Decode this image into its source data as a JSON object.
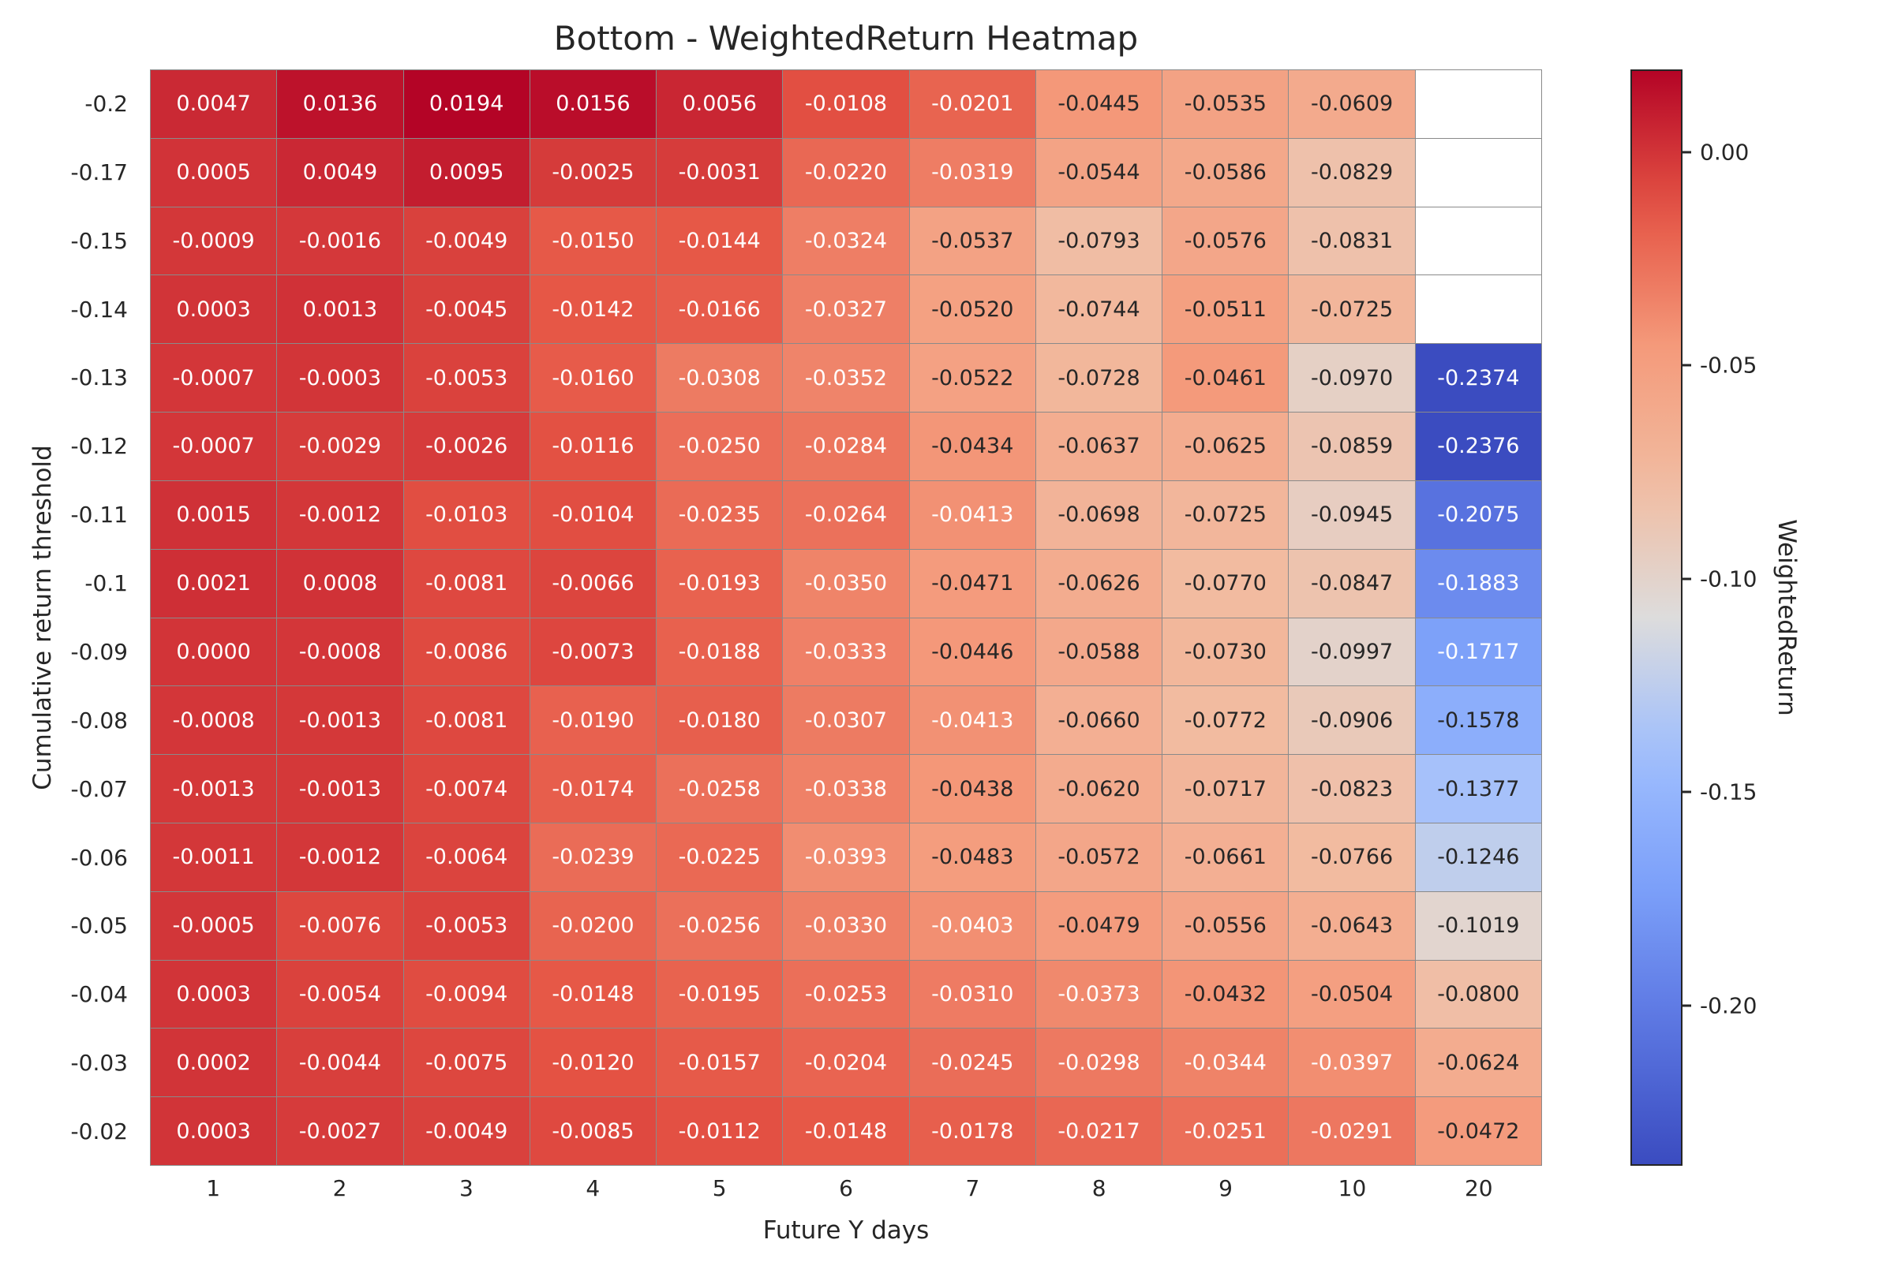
{
  "title": "Bottom - WeightedReturn Heatmap",
  "xlabel": "Future Y days",
  "ylabel": "Cumulative return threshold",
  "colorbar": {
    "label": "WeightedReturn",
    "ticks": [
      {
        "label": "0.00",
        "value": 0.0
      },
      {
        "label": "-0.05",
        "value": -0.05
      },
      {
        "label": "-0.10",
        "value": -0.1
      },
      {
        "label": "-0.15",
        "value": -0.15
      },
      {
        "label": "-0.20",
        "value": -0.2
      }
    ]
  },
  "colors": {
    "background": "#ffffff",
    "grid_line": "#8a8a8a",
    "text_dark": "#262626",
    "text_light": "#ffffff",
    "colormap_low": "#3b4cc0",
    "colormap_mid": "#dddcdc",
    "colormap_high": "#b40426"
  },
  "chart_data": {
    "type": "heatmap",
    "colormap": "coolwarm",
    "annot_decimals": 4,
    "vmin": -0.2376,
    "vmax": 0.0194,
    "x_categories": [
      "1",
      "2",
      "3",
      "4",
      "5",
      "6",
      "7",
      "8",
      "9",
      "10",
      "20"
    ],
    "y_categories": [
      "-0.2",
      "-0.17",
      "-0.15",
      "-0.14",
      "-0.13",
      "-0.12",
      "-0.11",
      "-0.1",
      "-0.09",
      "-0.08",
      "-0.07",
      "-0.06",
      "-0.05",
      "-0.04",
      "-0.03",
      "-0.02"
    ],
    "values": [
      [
        0.0047,
        0.0136,
        0.0194,
        0.0156,
        0.0056,
        -0.0108,
        -0.0201,
        -0.0445,
        -0.0535,
        -0.0609,
        null
      ],
      [
        0.0005,
        0.0049,
        0.0095,
        -0.0025,
        -0.0031,
        -0.022,
        -0.0319,
        -0.0544,
        -0.0586,
        -0.0829,
        null
      ],
      [
        -0.0009,
        -0.0016,
        -0.0049,
        -0.015,
        -0.0144,
        -0.0324,
        -0.0537,
        -0.0793,
        -0.0576,
        -0.0831,
        null
      ],
      [
        0.0003,
        0.0013,
        -0.0045,
        -0.0142,
        -0.0166,
        -0.0327,
        -0.052,
        -0.0744,
        -0.0511,
        -0.0725,
        null
      ],
      [
        -0.0007,
        -0.0003,
        -0.0053,
        -0.016,
        -0.0308,
        -0.0352,
        -0.0522,
        -0.0728,
        -0.0461,
        -0.097,
        -0.2374
      ],
      [
        -0.0007,
        -0.0029,
        -0.0026,
        -0.0116,
        -0.025,
        -0.0284,
        -0.0434,
        -0.0637,
        -0.0625,
        -0.0859,
        -0.2376
      ],
      [
        0.0015,
        -0.0012,
        -0.0103,
        -0.0104,
        -0.0235,
        -0.0264,
        -0.0413,
        -0.0698,
        -0.0725,
        -0.0945,
        -0.2075
      ],
      [
        0.0021,
        0.0008,
        -0.0081,
        -0.0066,
        -0.0193,
        -0.035,
        -0.0471,
        -0.0626,
        -0.077,
        -0.0847,
        -0.1883
      ],
      [
        0.0,
        -0.0008,
        -0.0086,
        -0.0073,
        -0.0188,
        -0.0333,
        -0.0446,
        -0.0588,
        -0.073,
        -0.0997,
        -0.1717
      ],
      [
        -0.0008,
        -0.0013,
        -0.0081,
        -0.019,
        -0.018,
        -0.0307,
        -0.0413,
        -0.066,
        -0.0772,
        -0.0906,
        -0.1578
      ],
      [
        -0.0013,
        -0.0013,
        -0.0074,
        -0.0174,
        -0.0258,
        -0.0338,
        -0.0438,
        -0.062,
        -0.0717,
        -0.0823,
        -0.1377
      ],
      [
        -0.0011,
        -0.0012,
        -0.0064,
        -0.0239,
        -0.0225,
        -0.0393,
        -0.0483,
        -0.0572,
        -0.0661,
        -0.0766,
        -0.1246
      ],
      [
        -0.0005,
        -0.0076,
        -0.0053,
        -0.02,
        -0.0256,
        -0.033,
        -0.0403,
        -0.0479,
        -0.0556,
        -0.0643,
        -0.1019
      ],
      [
        0.0003,
        -0.0054,
        -0.0094,
        -0.0148,
        -0.0195,
        -0.0253,
        -0.031,
        -0.0373,
        -0.0432,
        -0.0504,
        -0.08
      ],
      [
        0.0002,
        -0.0044,
        -0.0075,
        -0.012,
        -0.0157,
        -0.0204,
        -0.0245,
        -0.0298,
        -0.0344,
        -0.0397,
        -0.0624
      ],
      [
        0.0003,
        -0.0027,
        -0.0049,
        -0.0085,
        -0.0112,
        -0.0148,
        -0.0178,
        -0.0217,
        -0.0251,
        -0.0291,
        -0.0472
      ]
    ]
  }
}
